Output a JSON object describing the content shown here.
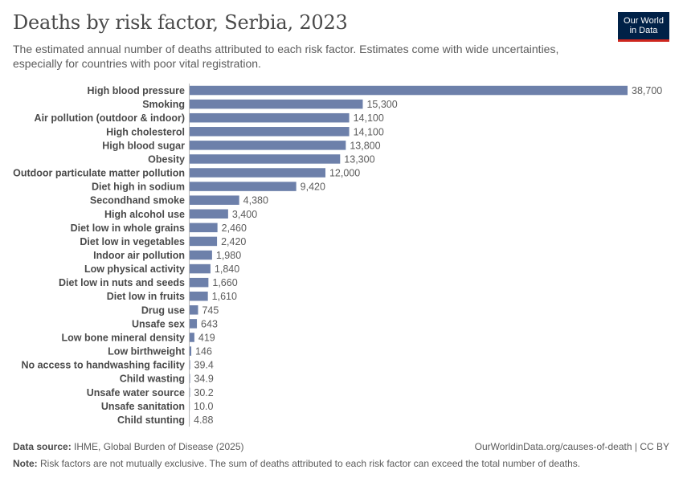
{
  "header": {
    "title": "Deaths by risk factor, Serbia, 2023",
    "subtitle": "The estimated annual number of deaths attributed to each risk factor. Estimates come with wide uncertainties, especially for countries with poor vital registration."
  },
  "logo": {
    "line1": "Our World",
    "line2": "in Data"
  },
  "colors": {
    "bar": "#6d80aa",
    "axis": "#bbbbbb",
    "label": "#4a4a4a",
    "value": "#5b5b5b"
  },
  "chart_data": {
    "type": "bar",
    "orientation": "horizontal",
    "title": "Deaths by risk factor, Serbia, 2023",
    "xlabel": "",
    "ylabel": "",
    "xlim": [
      0,
      38700
    ],
    "categories": [
      "High blood pressure",
      "Smoking",
      "Air pollution (outdoor & indoor)",
      "High cholesterol",
      "High blood sugar",
      "Obesity",
      "Outdoor particulate matter pollution",
      "Diet high in sodium",
      "Secondhand smoke",
      "High alcohol use",
      "Diet low in whole grains",
      "Diet low in vegetables",
      "Indoor air pollution",
      "Low physical activity",
      "Diet low in nuts and seeds",
      "Diet low in fruits",
      "Drug use",
      "Unsafe sex",
      "Low bone mineral density",
      "Low birthweight",
      "No access to handwashing facility",
      "Child wasting",
      "Unsafe water source",
      "Unsafe sanitation",
      "Child stunting"
    ],
    "values": [
      38700,
      15300,
      14100,
      14100,
      13800,
      13300,
      12000,
      9420,
      4380,
      3400,
      2460,
      2420,
      1980,
      1840,
      1660,
      1610,
      745,
      643,
      419,
      146,
      39.4,
      34.9,
      30.2,
      10.0,
      4.88
    ],
    "value_labels": [
      "38,700",
      "15,300",
      "14,100",
      "14,100",
      "13,800",
      "13,300",
      "12,000",
      "9,420",
      "4,380",
      "3,400",
      "2,460",
      "2,420",
      "1,980",
      "1,840",
      "1,660",
      "1,610",
      "745",
      "643",
      "419",
      "146",
      "39.4",
      "34.9",
      "30.2",
      "10.0",
      "4.88"
    ]
  },
  "footer": {
    "source_label": "Data source:",
    "source_text": "IHME, Global Burden of Disease (2025)",
    "credit": "OurWorldinData.org/causes-of-death | CC BY",
    "note_label": "Note:",
    "note_text": "Risk factors are not mutually exclusive. The sum of deaths attributed to each risk factor can exceed the total number of deaths."
  }
}
